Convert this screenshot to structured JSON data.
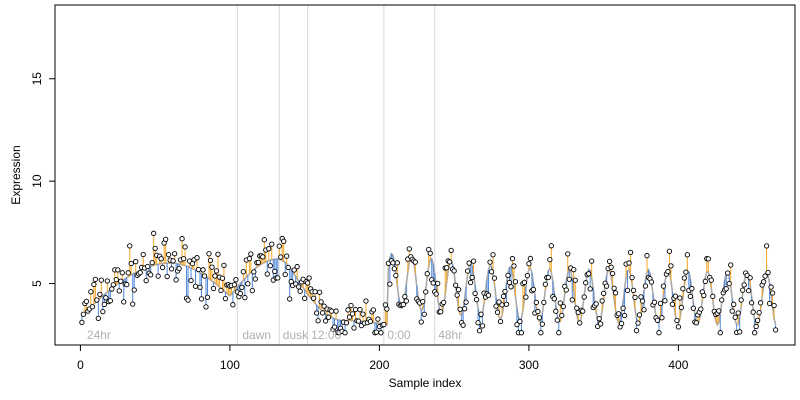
{
  "chart_data": {
    "type": "scatter",
    "xlabel": "Sample index",
    "ylabel": "Expression",
    "xlim": [
      -17,
      478
    ],
    "ylim": [
      2.0,
      18.6
    ],
    "x_ticks": [
      0,
      100,
      200,
      300,
      400
    ],
    "y_ticks": [
      5,
      10,
      15
    ],
    "grid": false,
    "legend": "none",
    "colors": {
      "fit_line": "#aaaaaa",
      "residual_above": "#f5a623",
      "residual_below": "#4f86d9",
      "point_stroke": "#000000",
      "point_fill": "#ffffff",
      "phase_line": "#d8d8d8",
      "phase_label": "#b0b0b0"
    },
    "phase_markers": [
      {
        "x": 105,
        "label": "dawn"
      },
      {
        "x": 133,
        "label": "dusk"
      },
      {
        "x": 152,
        "label": "12:00"
      },
      {
        "x": 203,
        "label": "0:00"
      },
      {
        "x": 237,
        "label": "48hr"
      }
    ],
    "phase_texts": [
      {
        "x": 3,
        "label": "24hr"
      },
      {
        "x": 107,
        "label": "dawn"
      },
      {
        "x": 134,
        "label": "dusk"
      },
      {
        "x": 153,
        "label": "12:00"
      },
      {
        "x": 204,
        "label": "0:00"
      },
      {
        "x": 238,
        "label": "48hr"
      }
    ],
    "phase_texts_note": null,
    "segments": [
      {
        "x": [
          0,
          100
        ],
        "start": 3.4,
        "peak": 6.0,
        "end": 4.4,
        "peak_at": 0.6,
        "noise": 0.9
      },
      {
        "x": [
          100,
          140
        ],
        "start": 4.4,
        "peak": 6.2,
        "end": 5.8,
        "peak_at": 0.8,
        "noise": 0.9
      },
      {
        "x": [
          140,
          205
        ],
        "start": 5.8,
        "peak": 3.2,
        "end": 3.0,
        "peak_at": 0.55,
        "noise": 0.7
      },
      {
        "x": [
          205,
          465
        ],
        "start": 5.2,
        "peak": 4.4,
        "end": 4.2,
        "peak_at": 0.5,
        "noise": 0.8,
        "oscillate": {
          "period": 13.2,
          "amplitude": 1.3
        }
      }
    ],
    "n_points": 465,
    "x_range": [
      0,
      465
    ]
  }
}
